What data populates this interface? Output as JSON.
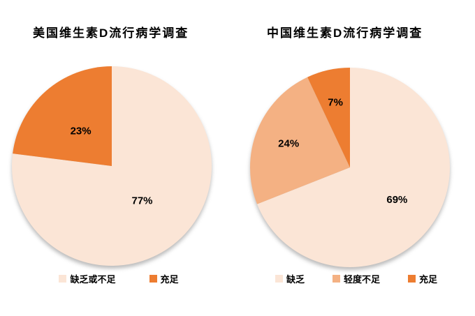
{
  "page": {
    "background_color": "#ffffff",
    "text_color": "#000000"
  },
  "palette": {
    "light_peach": "#FBE5D6",
    "medium_orange": "#F4B183",
    "dark_orange": "#ED7D31"
  },
  "chart_data": [
    {
      "type": "pie",
      "title": "美国维生素D流行病学调查",
      "start_angle_deg": 0,
      "direction": "clockwise",
      "legend_position": "bottom",
      "data_label_color": "#000000",
      "slices": [
        {
          "label": "缺乏或不足",
          "value": 77,
          "data_label": "77%",
          "color": "#FBE5D6",
          "label_r": 0.46
        },
        {
          "label": "充足",
          "value": 23,
          "data_label": "23%",
          "color": "#ED7D31",
          "label_r": 0.47
        }
      ]
    },
    {
      "type": "pie",
      "title": "中国维生素D流行病学调查",
      "start_angle_deg": 0,
      "direction": "clockwise",
      "legend_position": "bottom",
      "data_label_color": "#000000",
      "slices": [
        {
          "label": "缺乏",
          "value": 69,
          "data_label": "69%",
          "color": "#FBE5D6",
          "label_r": 0.57
        },
        {
          "label": "轻度不足",
          "value": 24,
          "data_label": "24%",
          "color": "#F4B183",
          "label_r": 0.66
        },
        {
          "label": "充足",
          "value": 7,
          "data_label": "7%",
          "color": "#ED7D31",
          "label_r": 0.67
        }
      ]
    }
  ]
}
